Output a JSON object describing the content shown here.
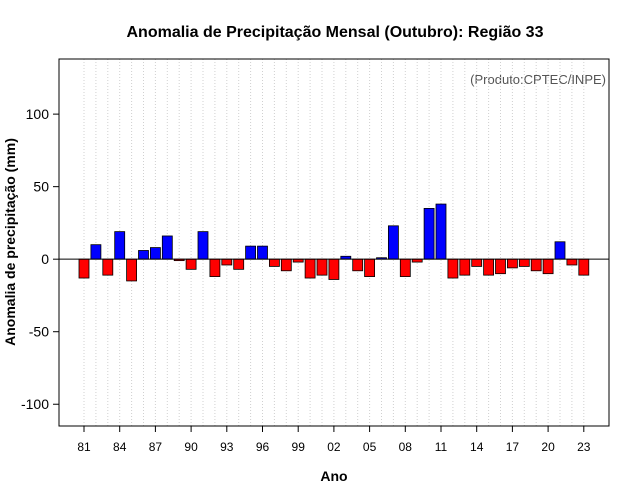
{
  "chart_data": {
    "type": "bar",
    "title": "Anomalia de Precipitação Mensal (Outubro): Região 33",
    "xlabel": "Ano",
    "ylabel": "Anomalia de precipitação (mm)",
    "annotation": "(Produto:CPTEC/INPE)",
    "ylim": [
      -115,
      138
    ],
    "yticks": [
      -100,
      -50,
      0,
      50,
      100
    ],
    "x": [
      "1981",
      "1982",
      "1983",
      "1984",
      "1985",
      "1986",
      "1987",
      "1988",
      "1989",
      "1990",
      "1991",
      "1992",
      "1993",
      "1994",
      "1995",
      "1996",
      "1997",
      "1998",
      "1999",
      "2000",
      "2001",
      "2002",
      "2003",
      "2004",
      "2005",
      "2006",
      "2007",
      "2008",
      "2009",
      "2010",
      "2011",
      "2012",
      "2013",
      "2014",
      "2015",
      "2016",
      "2017",
      "2018",
      "2019",
      "2020",
      "2021",
      "2022",
      "2023"
    ],
    "xtick_labels": [
      {
        "year": "1981",
        "label": "81"
      },
      {
        "year": "1984",
        "label": "84"
      },
      {
        "year": "1987",
        "label": "87"
      },
      {
        "year": "1990",
        "label": "90"
      },
      {
        "year": "1993",
        "label": "93"
      },
      {
        "year": "1996",
        "label": "96"
      },
      {
        "year": "1999",
        "label": "99"
      },
      {
        "year": "2002",
        "label": "02"
      },
      {
        "year": "2005",
        "label": "05"
      },
      {
        "year": "2008",
        "label": "08"
      },
      {
        "year": "2011",
        "label": "11"
      },
      {
        "year": "2014",
        "label": "14"
      },
      {
        "year": "2017",
        "label": "17"
      },
      {
        "year": "2020",
        "label": "20"
      },
      {
        "year": "2023",
        "label": "23"
      }
    ],
    "values": [
      -13,
      10,
      -11,
      19,
      -15,
      6,
      8,
      16,
      -1,
      -7,
      19,
      -12,
      -4,
      -7,
      9,
      9,
      -5,
      -8,
      -2,
      -13,
      -11,
      -14,
      2,
      -8,
      -12,
      1,
      23,
      -12,
      -2,
      35,
      38,
      -13,
      -11,
      -5,
      -11,
      -10,
      -6,
      -5,
      -8,
      -10,
      12,
      -4,
      -11
    ],
    "legend": "none",
    "grid": "vertical dotted",
    "colors": {
      "positive": "#0000ff",
      "negative": "#ff0000",
      "zero_line": "#000000",
      "grid": "#d0d0d0",
      "bar_border": "#000000"
    }
  }
}
